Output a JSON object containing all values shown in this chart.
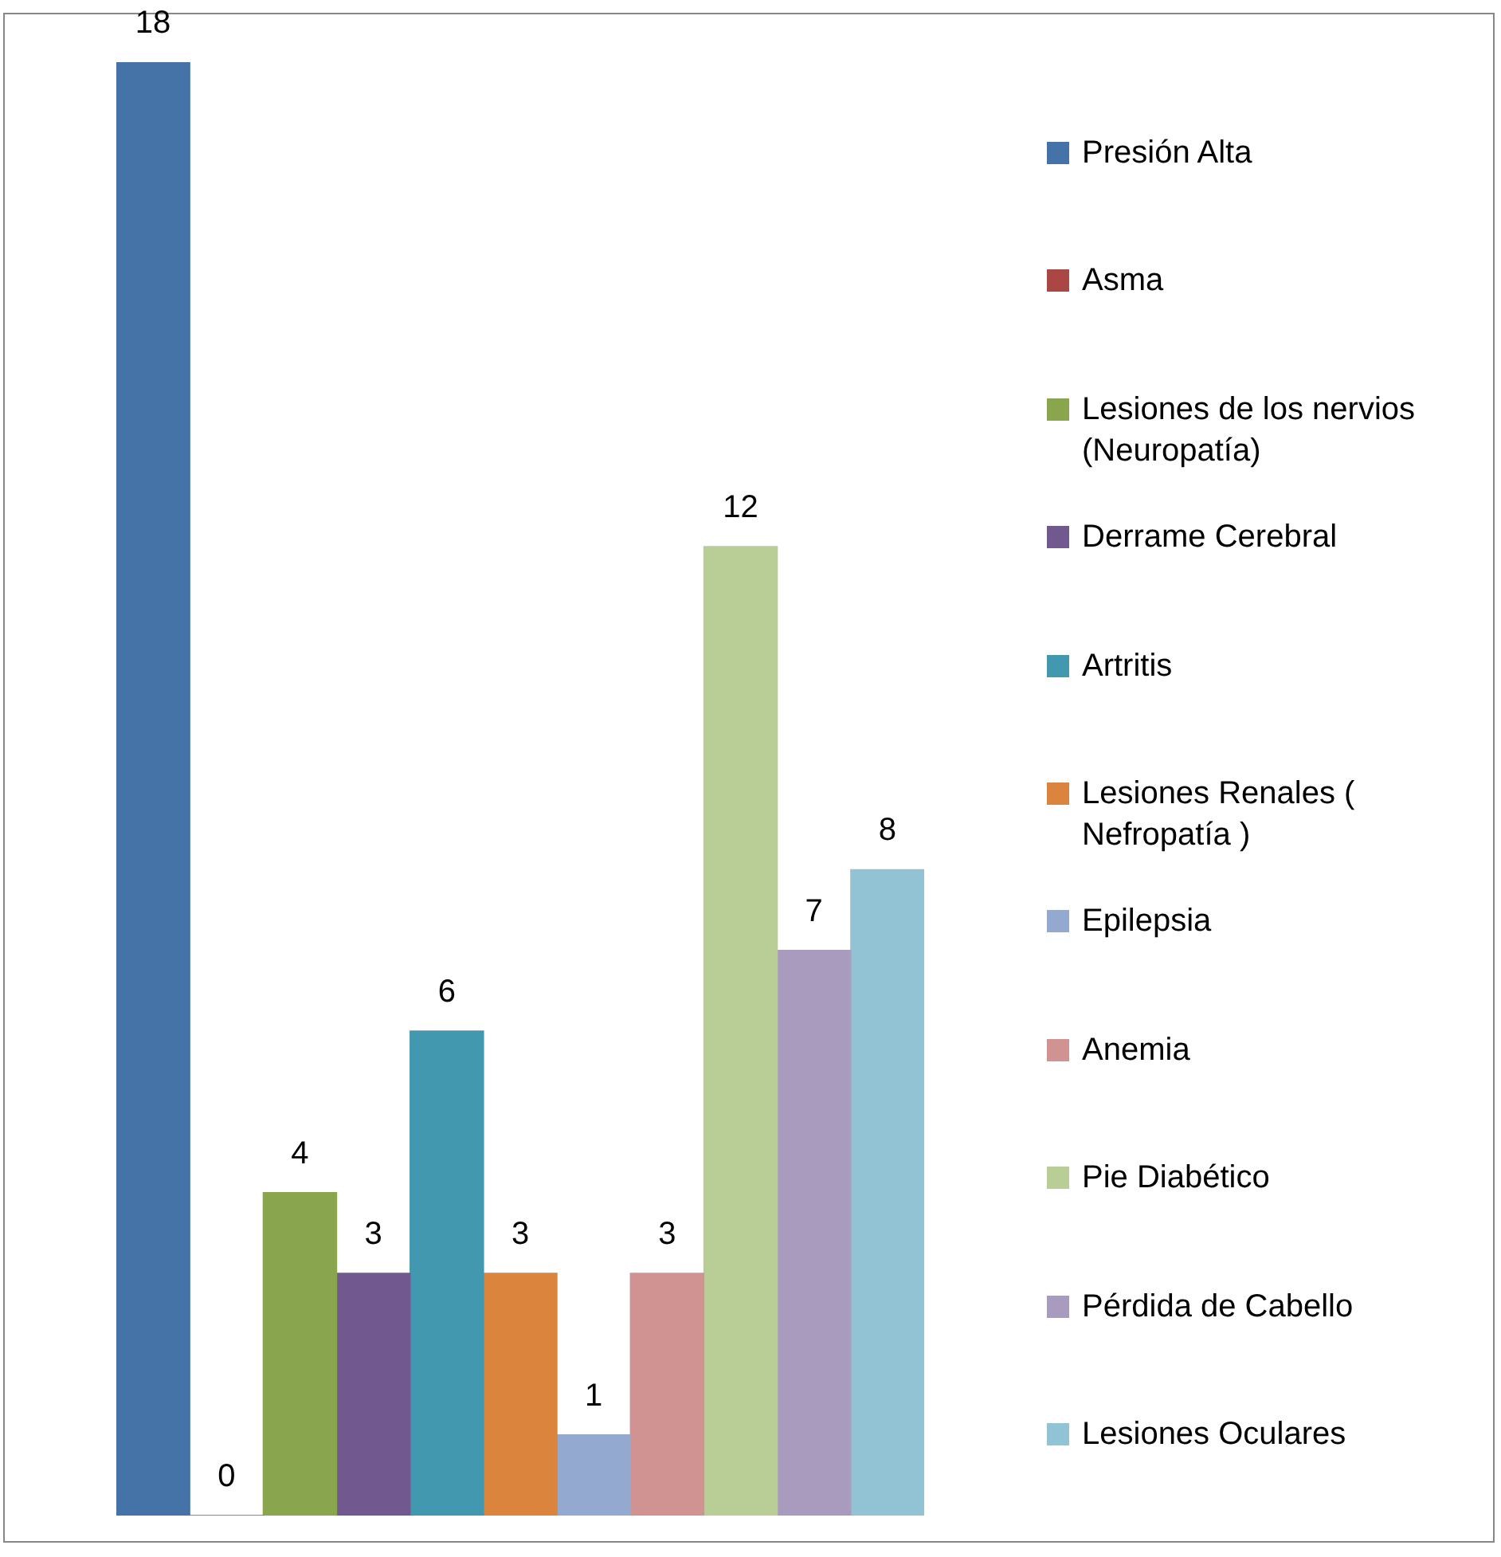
{
  "chart_data": {
    "type": "bar",
    "categories": [
      null
    ],
    "legend": "right",
    "data_labels": true,
    "series": [
      {
        "name": "Presión Alta",
        "color": "#4572a7",
        "values": [
          18
        ]
      },
      {
        "name": "Asma",
        "color": "#aa4643",
        "values": [
          0
        ]
      },
      {
        "name": "Lesiones de los nervios (Neuropatía)",
        "color": "#89a54e",
        "values": [
          4
        ]
      },
      {
        "name": "Derrame Cerebral",
        "color": "#71588f",
        "values": [
          3
        ]
      },
      {
        "name": "Artritis",
        "color": "#4198af",
        "values": [
          6
        ]
      },
      {
        "name": "Lesiones Renales ( Nefropatía )",
        "color": "#db843d",
        "values": [
          3
        ]
      },
      {
        "name": "Epilepsia",
        "color": "#93a9cf",
        "values": [
          1
        ]
      },
      {
        "name": "Anemia",
        "color": "#d19392",
        "values": [
          3
        ]
      },
      {
        "name": "Pie Diabético",
        "color": "#b9cd96",
        "values": [
          12
        ]
      },
      {
        "name": "Pérdida de Cabello",
        "color": "#a99bbd",
        "values": [
          7
        ]
      },
      {
        "name": "Lesiones Oculares",
        "color": "#92c3d4",
        "values": [
          8
        ]
      }
    ]
  }
}
